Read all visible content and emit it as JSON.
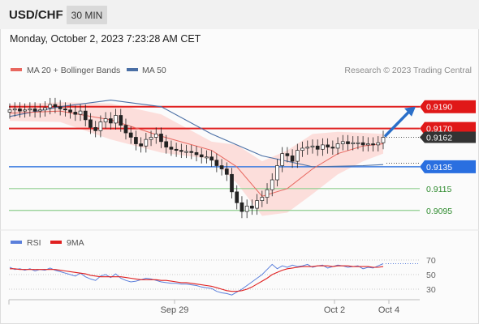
{
  "header": {
    "symbol": "USD/CHF",
    "timeframe": "30 MIN",
    "datetime": "Monday, October 2, 2023 7:23:28 AM CET"
  },
  "colors": {
    "ma20": "#e8675f",
    "bollinger_fill": "#fcd4d0",
    "ma50": "#4a6fa5",
    "resistance": "#e02020",
    "support_blue": "#3d7de0",
    "support_green": "#8fcf8f",
    "arrow": "#2a6fc9",
    "price_tag": "#333333",
    "rsi": "#5b7fdb",
    "rsi_ma": "#e02020"
  },
  "legend": {
    "ma20_label": "MA 20 + Bollinger Bands",
    "ma50_label": "MA 50",
    "copyright": "Research © 2023 Trading Central",
    "rsi_label": "RSI",
    "rsi_ma_label": "9MA"
  },
  "chart_data": [
    {
      "type": "candlestick",
      "title": "USD/CHF",
      "ylim": [
        0.908,
        0.9215
      ],
      "x_ticks": [
        "Sep 29",
        "Oct 2",
        "Oct 4"
      ],
      "current_price": "0.9162",
      "levels": [
        {
          "value": 0.919,
          "label": "0.9190",
          "kind": "resistance"
        },
        {
          "value": 0.917,
          "label": "0.9170",
          "kind": "resistance"
        },
        {
          "value": 0.9135,
          "label": "0.9135",
          "kind": "support"
        },
        {
          "value": 0.9115,
          "label": "0.9115",
          "kind": "support"
        },
        {
          "value": 0.9095,
          "label": "0.9095",
          "kind": "support"
        }
      ],
      "closes": [
        0.9187,
        0.9188,
        0.9186,
        0.9187,
        0.9188,
        0.9186,
        0.9187,
        0.9189,
        0.9192,
        0.919,
        0.9188,
        0.9187,
        0.9185,
        0.9183,
        0.9186,
        0.9178,
        0.9171,
        0.9168,
        0.9176,
        0.9179,
        0.9175,
        0.9182,
        0.9173,
        0.9166,
        0.9162,
        0.9156,
        0.9154,
        0.916,
        0.9162,
        0.9165,
        0.9158,
        0.9153,
        0.9151,
        0.915,
        0.9149,
        0.9149,
        0.9148,
        0.9146,
        0.9144,
        0.9144,
        0.9141,
        0.9136,
        0.9133,
        0.9128,
        0.9112,
        0.9102,
        0.9094,
        0.9099,
        0.9097,
        0.9104,
        0.9107,
        0.9114,
        0.9123,
        0.9136,
        0.9147,
        0.9145,
        0.914,
        0.915,
        0.9152,
        0.9153,
        0.9154,
        0.9151,
        0.9155,
        0.9153,
        0.9152,
        0.9156,
        0.9158,
        0.9156,
        0.9157,
        0.9157,
        0.9155,
        0.9156,
        0.9155,
        0.9157,
        0.9162
      ],
      "ma50_points": [
        [
          0,
          0.9181
        ],
        [
          10,
          0.919
        ],
        [
          20,
          0.9196
        ],
        [
          30,
          0.919
        ],
        [
          40,
          0.9165
        ],
        [
          50,
          0.9145
        ],
        [
          60,
          0.9135
        ],
        [
          70,
          0.9136
        ],
        [
          74,
          0.9137
        ]
      ],
      "ma20_points": [
        [
          0,
          0.9184
        ],
        [
          10,
          0.9186
        ],
        [
          20,
          0.9178
        ],
        [
          30,
          0.9163
        ],
        [
          40,
          0.915
        ],
        [
          45,
          0.9135
        ],
        [
          50,
          0.9108
        ],
        [
          55,
          0.9115
        ],
        [
          60,
          0.9133
        ],
        [
          65,
          0.9147
        ],
        [
          70,
          0.9154
        ],
        [
          74,
          0.9156
        ]
      ],
      "bollinger_upper": [
        [
          0,
          0.9192
        ],
        [
          10,
          0.9194
        ],
        [
          20,
          0.9193
        ],
        [
          30,
          0.9183
        ],
        [
          40,
          0.9158
        ],
        [
          45,
          0.9155
        ],
        [
          50,
          0.914
        ],
        [
          55,
          0.915
        ],
        [
          60,
          0.9165
        ],
        [
          65,
          0.9167
        ],
        [
          70,
          0.9166
        ],
        [
          74,
          0.9165
        ]
      ],
      "bollinger_lower": [
        [
          0,
          0.9177
        ],
        [
          10,
          0.9176
        ],
        [
          20,
          0.916
        ],
        [
          30,
          0.9148
        ],
        [
          40,
          0.9142
        ],
        [
          45,
          0.912
        ],
        [
          50,
          0.909
        ],
        [
          55,
          0.9093
        ],
        [
          60,
          0.911
        ],
        [
          65,
          0.9128
        ],
        [
          70,
          0.914
        ],
        [
          74,
          0.9147
        ]
      ],
      "projection_to": 0.919
    },
    {
      "type": "line",
      "title": "RSI",
      "ylim": [
        20,
        80
      ],
      "y_ticks": [
        "70",
        "50",
        "30"
      ],
      "series": [
        {
          "name": "RSI",
          "values": [
            60,
            57,
            58,
            56,
            58,
            55,
            57,
            56,
            59,
            56,
            54,
            52,
            50,
            48,
            52,
            47,
            44,
            42,
            48,
            50,
            46,
            51,
            45,
            42,
            40,
            41,
            43,
            45,
            44,
            42,
            40,
            39,
            38,
            38,
            37,
            37,
            36,
            35,
            33,
            32,
            31,
            27,
            25,
            24,
            22,
            26,
            30,
            35,
            40,
            45,
            50,
            57,
            64,
            58,
            62,
            60,
            63,
            61,
            62,
            64,
            60,
            62,
            63,
            59,
            61,
            63,
            62,
            60,
            61,
            62,
            58,
            60,
            59,
            62,
            65
          ]
        },
        {
          "name": "9MA",
          "values": [
            58,
            58,
            57,
            57,
            57,
            57,
            57,
            57,
            57,
            57,
            56,
            55,
            54,
            53,
            52,
            51,
            49,
            48,
            47,
            47,
            47,
            47,
            47,
            46,
            45,
            44,
            43,
            43,
            43,
            43,
            42,
            42,
            41,
            40,
            39,
            39,
            38,
            37,
            36,
            35,
            34,
            32,
            30,
            28,
            27,
            27,
            28,
            30,
            33,
            37,
            41,
            45,
            50,
            53,
            56,
            58,
            59,
            60,
            61,
            61,
            61,
            62,
            62,
            62,
            61,
            62,
            62,
            62,
            61,
            61,
            61,
            61,
            60,
            60,
            61
          ]
        }
      ]
    }
  ]
}
